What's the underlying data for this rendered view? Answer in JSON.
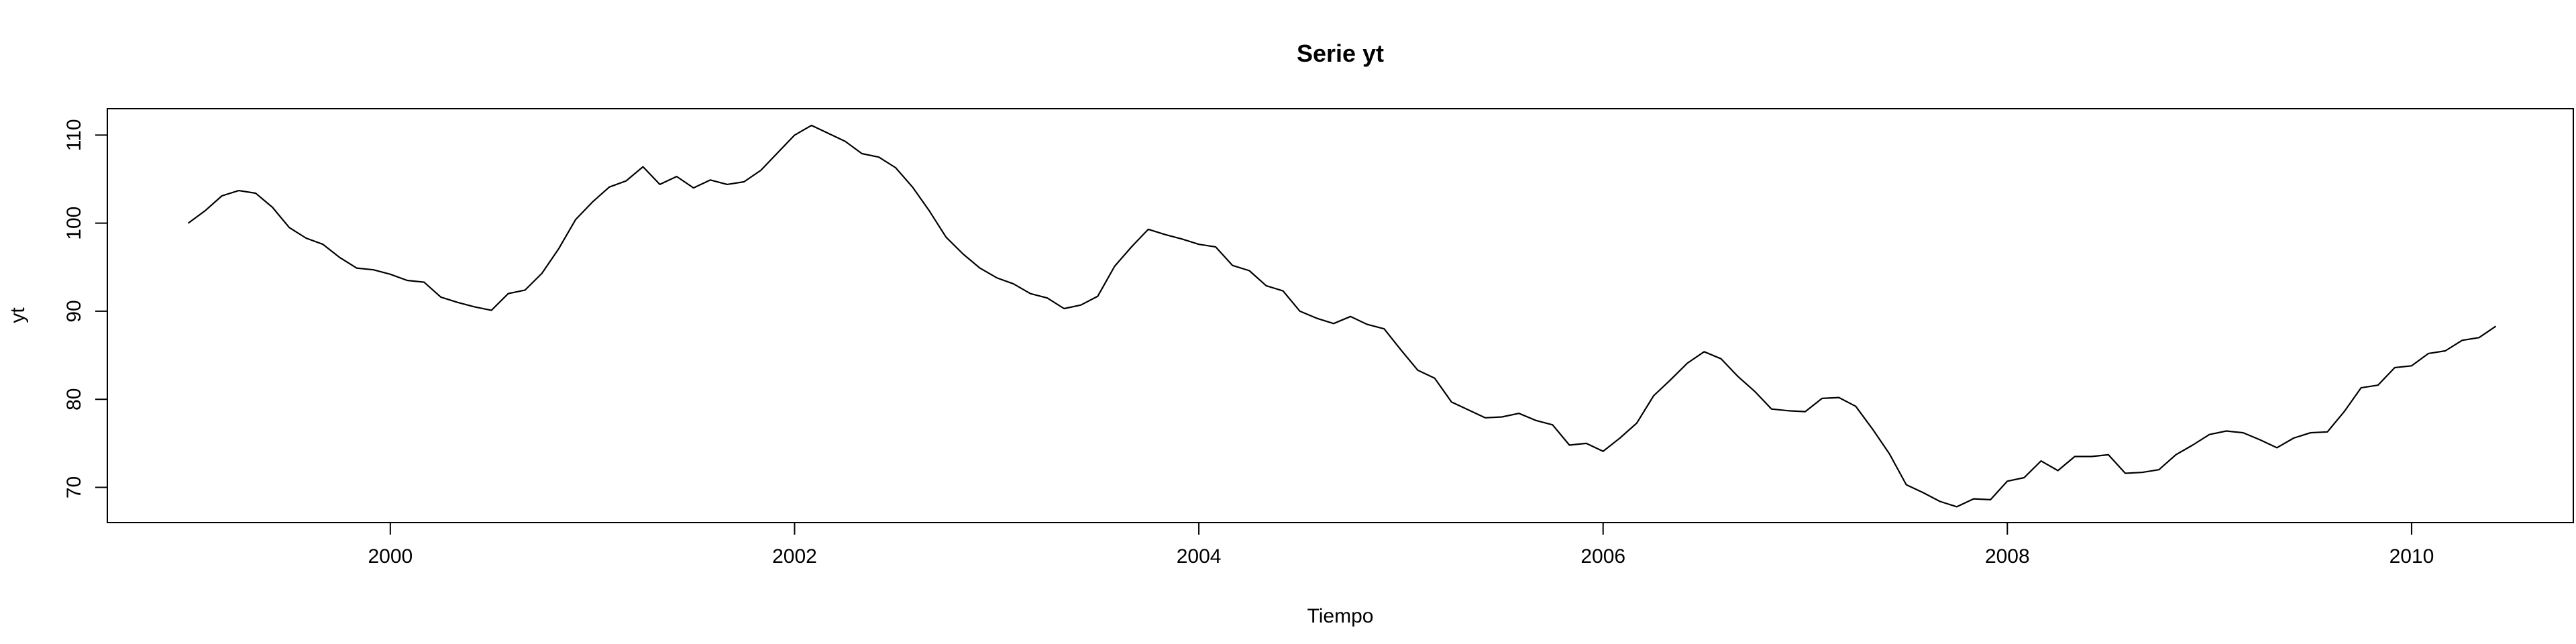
{
  "chart_data": {
    "type": "line",
    "title": "Serie yt",
    "xlabel": "Tiempo",
    "ylabel": "yt",
    "xlim": [
      1998.6,
      2010.8
    ],
    "ylim": [
      66,
      113
    ],
    "xticks": [
      2000,
      2002,
      2004,
      2006,
      2008,
      2010
    ],
    "yticks": [
      70,
      80,
      90,
      100,
      110
    ],
    "grid": false,
    "start": 1999.0,
    "frequency": 12,
    "series": [
      {
        "values": [
          100.0,
          101.4,
          103.1,
          103.7,
          103.4,
          101.8,
          99.5,
          98.3,
          97.6,
          96.1,
          94.9,
          94.7,
          94.2,
          93.5,
          93.3,
          91.6,
          91.0,
          90.5,
          90.1,
          92.0,
          92.4,
          94.3,
          97.1,
          100.4,
          102.4,
          104.1,
          104.8,
          106.4,
          104.4,
          105.3,
          104.0,
          104.9,
          104.4,
          104.7,
          106.0,
          108.0,
          110.0,
          111.1,
          110.2,
          109.3,
          107.9,
          107.5,
          106.3,
          104.1,
          101.4,
          98.4,
          96.5,
          94.9,
          93.8,
          93.1,
          92.0,
          91.5,
          90.3,
          90.7,
          91.7,
          95.1,
          97.3,
          99.3,
          98.7,
          98.2,
          97.6,
          97.3,
          95.2,
          94.6,
          92.9,
          92.3,
          90.0,
          89.2,
          88.6,
          89.4,
          88.5,
          88.0,
          85.6,
          83.3,
          82.4,
          79.7,
          78.8,
          77.9,
          78.0,
          78.4,
          77.6,
          77.1,
          74.8,
          75.0,
          74.1,
          75.6,
          77.3,
          80.4,
          82.2,
          84.1,
          85.4,
          84.6,
          82.6,
          80.9,
          78.9,
          78.7,
          78.6,
          80.1,
          80.2,
          79.2,
          76.6,
          73.8,
          70.3,
          69.4,
          68.4,
          67.8,
          68.7,
          68.6,
          70.7,
          71.1,
          73.0,
          71.9,
          73.5,
          73.5,
          73.7,
          71.6,
          71.7,
          72.0,
          73.7,
          74.8,
          76.0,
          76.4,
          76.2,
          75.4,
          74.5,
          75.6,
          76.2,
          76.3,
          78.6,
          81.3,
          81.6,
          83.6,
          83.8,
          85.2,
          85.5,
          86.7,
          87.0,
          88.3
        ]
      }
    ]
  }
}
